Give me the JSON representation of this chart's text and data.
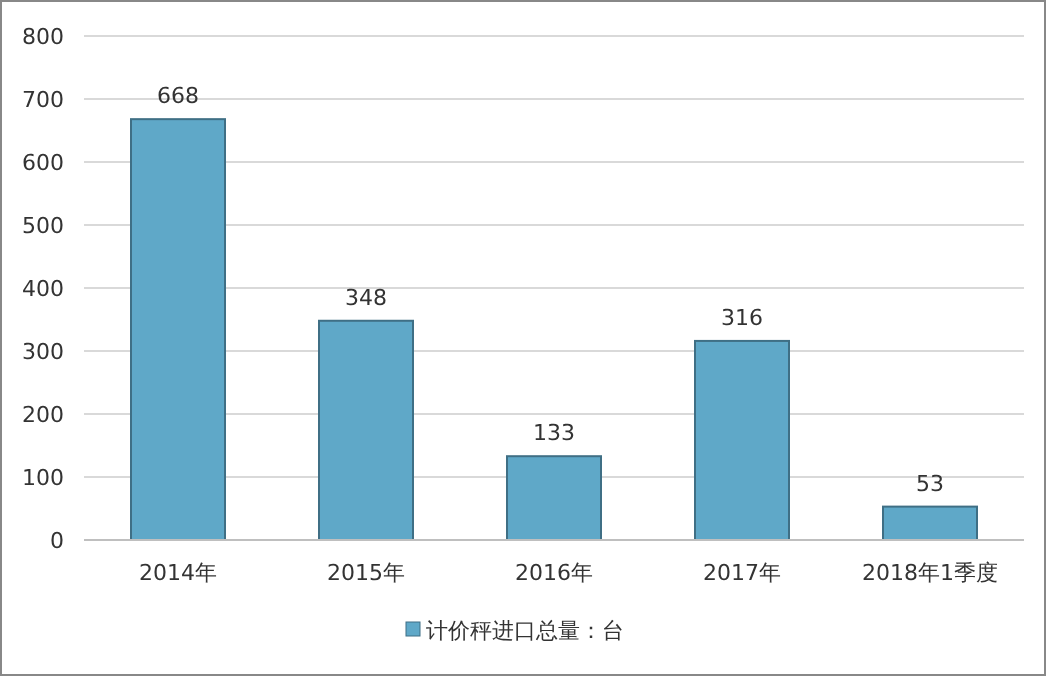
{
  "chart_data": {
    "type": "bar",
    "categories": [
      "2014年",
      "2015年",
      "2016年",
      "2017年",
      "2018年1季度"
    ],
    "series": [
      {
        "name": "计价秤进口总量：台",
        "color": "#5fa8c8",
        "values": [
          668,
          348,
          133,
          316,
          53
        ]
      }
    ],
    "ylim": [
      0,
      800
    ],
    "yticks": [
      0,
      100,
      200,
      300,
      400,
      500,
      600,
      700,
      800
    ],
    "grid": "y",
    "legend": "bottom",
    "data_labels": true
  }
}
